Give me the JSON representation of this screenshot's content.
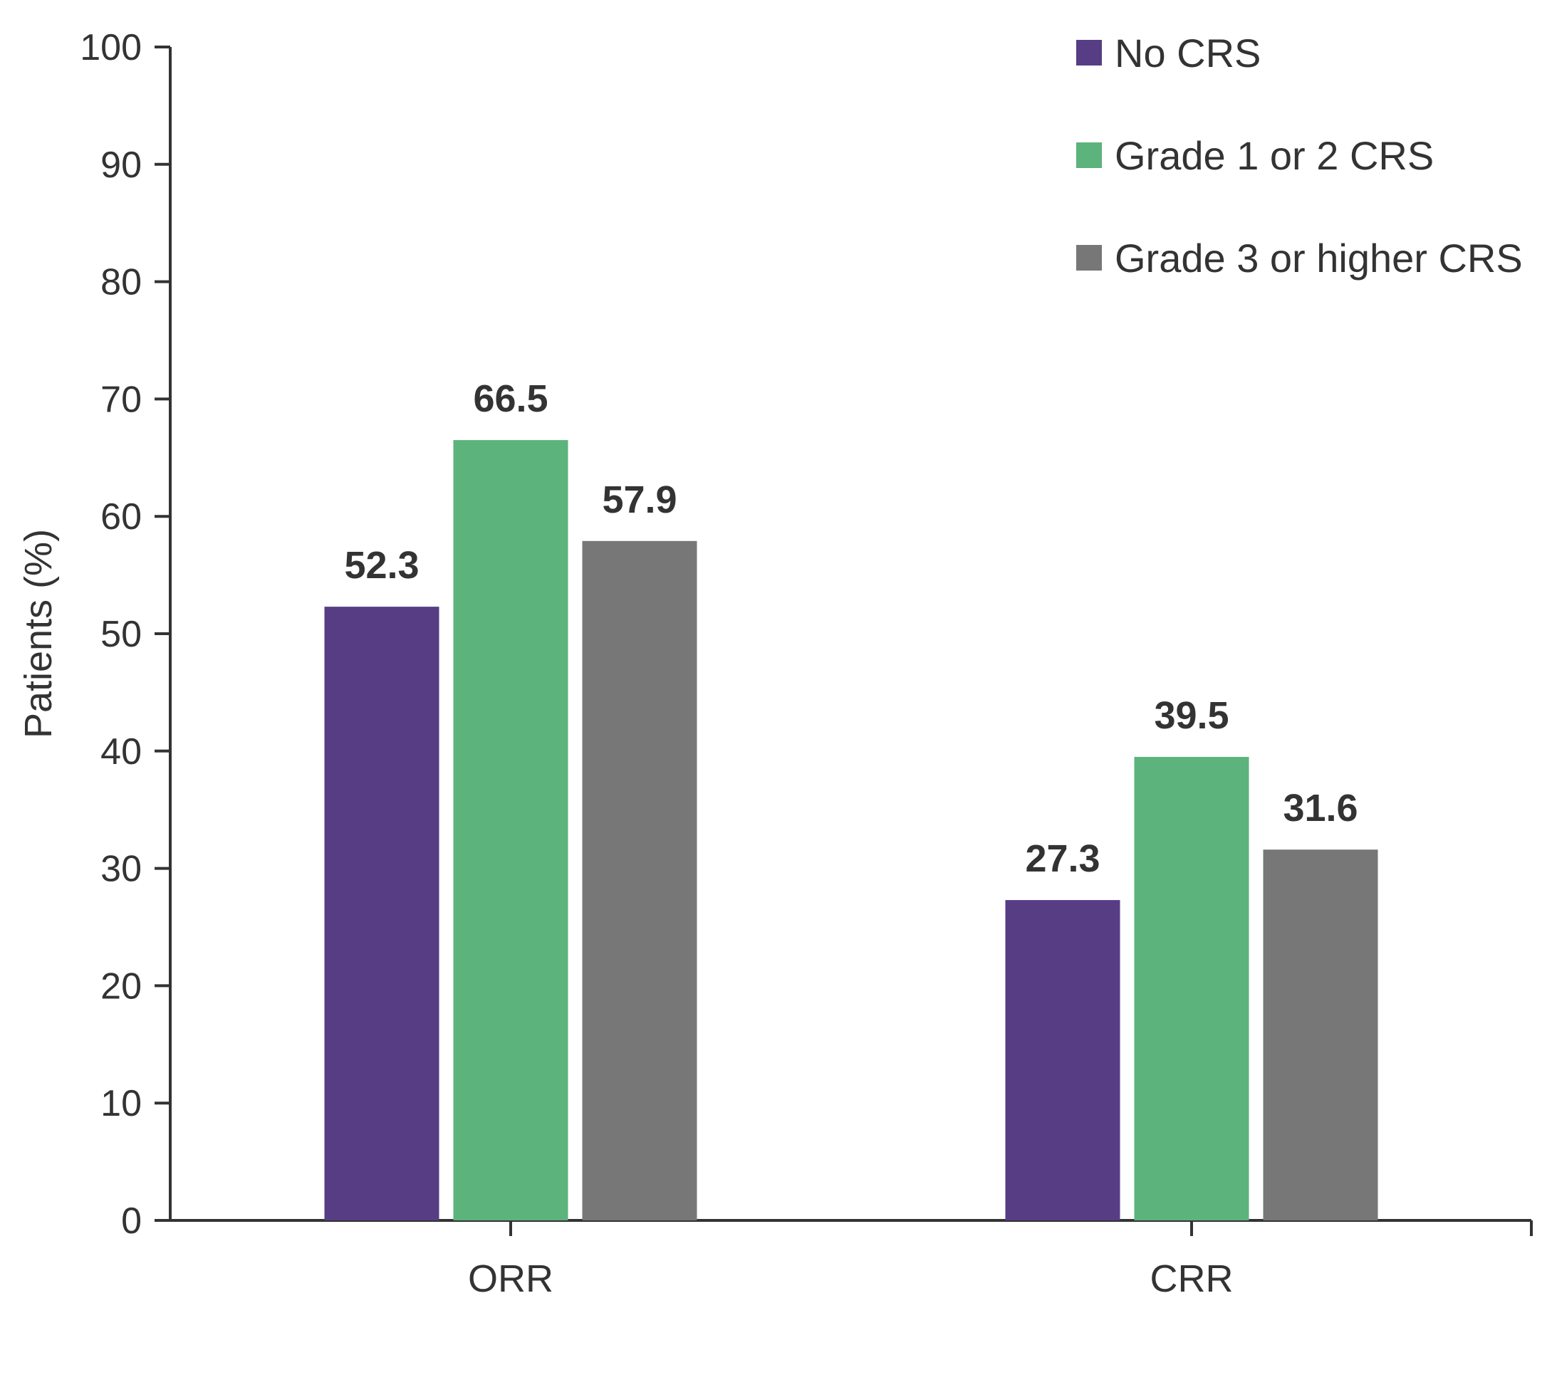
{
  "chart_data": {
    "type": "bar",
    "title": "",
    "xlabel": "",
    "ylabel": "Patients (%)",
    "ylim": [
      0,
      100
    ],
    "yticks": [
      0,
      10,
      20,
      30,
      40,
      50,
      60,
      70,
      80,
      90,
      100
    ],
    "categories": [
      "ORR",
      "CRR"
    ],
    "series": [
      {
        "name": "No CRS",
        "color": "#573d84",
        "values": [
          52.3,
          27.3
        ]
      },
      {
        "name": "Grade 1 or 2 CRS",
        "color": "#5cb37b",
        "values": [
          66.5,
          39.5
        ]
      },
      {
        "name": "Grade 3 or higher CRS",
        "color": "#777777",
        "values": [
          57.9,
          31.6
        ]
      }
    ],
    "value_labels": [
      [
        "52.3",
        "27.3"
      ],
      [
        "66.5",
        "39.5"
      ],
      [
        "57.9",
        "31.6"
      ]
    ],
    "legend_position": "top-right",
    "grid": false
  }
}
